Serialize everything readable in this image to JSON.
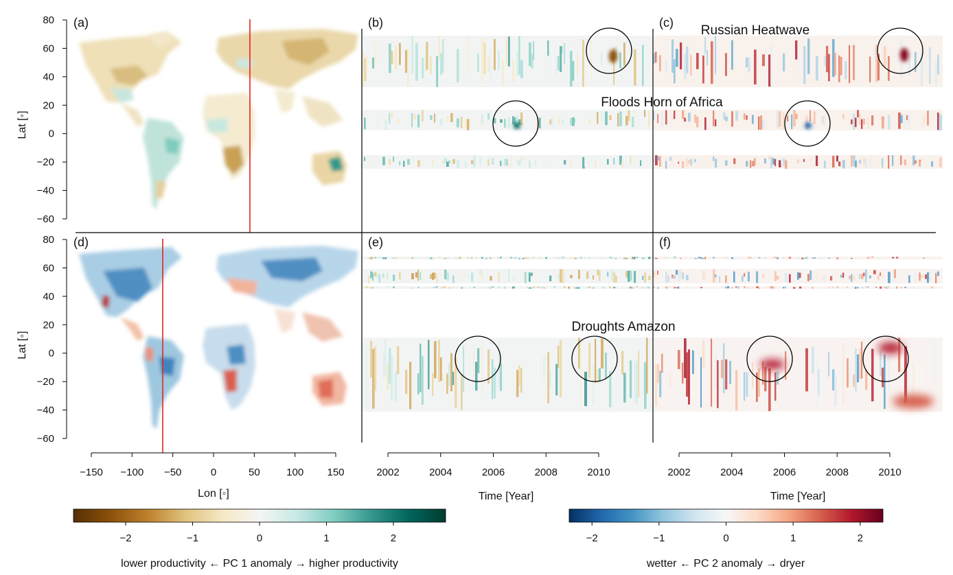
{
  "panels": [
    {
      "id": "a",
      "label": "(a)"
    },
    {
      "id": "b",
      "label": "(b)"
    },
    {
      "id": "c",
      "label": "(c)"
    },
    {
      "id": "d",
      "label": "(d)"
    },
    {
      "id": "e",
      "label": "(e)"
    },
    {
      "id": "f",
      "label": "(f)"
    }
  ],
  "annotations": {
    "russian_heatwave": "Russian Heatwave",
    "floods_horn_of_africa": "Floods Horn of Africa",
    "droughts_amazon": "Droughts Amazon"
  },
  "axes": {
    "lat_label": "Lat [◦]",
    "lon_label": "Lon [◦]",
    "time_label": "Time [Year]",
    "lat_ticks": [
      "80",
      "60",
      "40",
      "20",
      "0",
      "−20",
      "−40",
      "−60"
    ],
    "lon_ticks": [
      "−150",
      "−100",
      "−50",
      "0",
      "50",
      "100",
      "150"
    ],
    "year_ticks": [
      "2002",
      "2004",
      "2006",
      "2008",
      "2010"
    ]
  },
  "colorbars": [
    {
      "id": "pc1",
      "title": "lower productivity ← PC 1 anomaly → higher productivity",
      "ticks": [
        "−2",
        "−1",
        "0",
        "1",
        "2"
      ],
      "colors": [
        "#543005",
        "#8c510a",
        "#bf812d",
        "#dfc27d",
        "#f6e8c3",
        "#f5f5f5",
        "#c7eae5",
        "#80cdc1",
        "#35978f",
        "#01665e",
        "#003c30"
      ]
    },
    {
      "id": "pc2",
      "title": "wetter ← PC 2 anomaly → dryer",
      "ticks": [
        "−2",
        "−1",
        "0",
        "1",
        "2"
      ],
      "colors": [
        "#053061",
        "#2166ac",
        "#4393c3",
        "#92c5de",
        "#d1e5f0",
        "#f7f7f7",
        "#fddbc7",
        "#f4a582",
        "#d6604d",
        "#b2182b",
        "#67001f"
      ]
    }
  ],
  "chart_data": [
    {
      "type": "heatmap",
      "panel": "(a)",
      "description_fields": {
        "x": "Lon",
        "y": "Lat"
      },
      "xlim": [
        -170,
        180
      ],
      "ylim": [
        -65,
        80
      ],
      "marker_lon": 45,
      "colorbar": "pc1"
    },
    {
      "type": "heatmap",
      "panel": "(b)",
      "x": "Time [Year]",
      "y": "Lat",
      "xlim": [
        2001,
        2012
      ],
      "colorbar": "pc1"
    },
    {
      "type": "heatmap",
      "panel": "(c)",
      "x": "Time [Year]",
      "y": "Lat",
      "xlim": [
        2001,
        2012
      ],
      "colorbar": "pc2"
    },
    {
      "type": "heatmap",
      "panel": "(d)",
      "x": "Lon",
      "y": "Lat",
      "xlim": [
        -170,
        180
      ],
      "ylim": [
        -65,
        80
      ],
      "marker_lon": -62,
      "colorbar": "pc2"
    },
    {
      "type": "heatmap",
      "panel": "(e)",
      "x": "Time [Year]",
      "y": "Lat",
      "xlim": [
        2001,
        2012
      ],
      "colorbar": "pc1"
    },
    {
      "type": "heatmap",
      "panel": "(f)",
      "x": "Time [Year]",
      "y": "Lat",
      "xlim": [
        2001,
        2012
      ],
      "colorbar": "pc2"
    }
  ]
}
